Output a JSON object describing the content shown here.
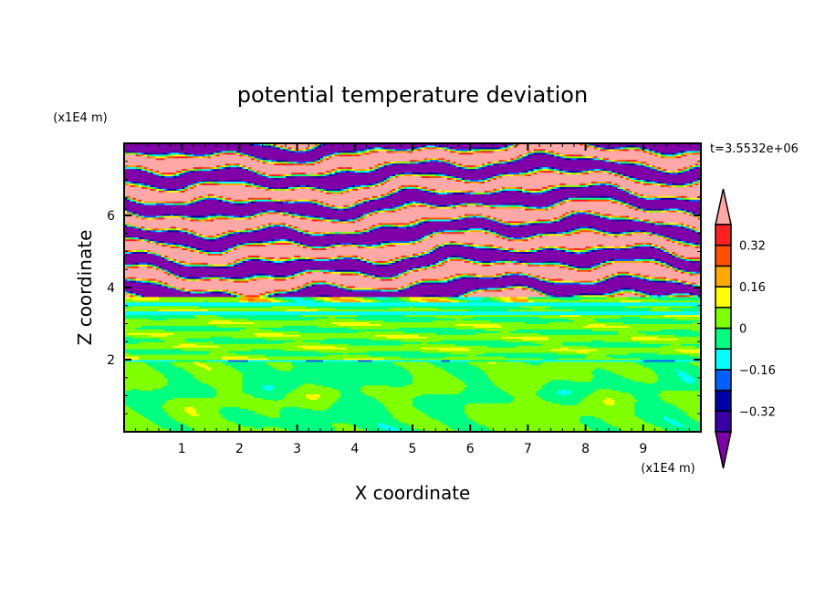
{
  "chart_data": {
    "type": "heatmap",
    "title": "potential temperature deviation",
    "xlabel": "X coordinate",
    "ylabel": "Z coordinate",
    "x_unit": "(x1E4 m)",
    "y_unit": "(x1E4 m)",
    "time_label": "t=3.5532e+06",
    "xlim": [
      0,
      10
    ],
    "ylim": [
      0,
      8
    ],
    "x_ticks": [
      1,
      2,
      3,
      4,
      5,
      6,
      7,
      8,
      9
    ],
    "y_ticks": [
      2,
      4,
      6
    ],
    "colorbar": {
      "levels": [
        -0.4,
        -0.32,
        -0.24,
        -0.16,
        -0.08,
        0,
        0.08,
        0.16,
        0.24,
        0.32,
        0.4
      ],
      "colors": [
        "#3a00a8",
        "#0000a8",
        "#0060ff",
        "#00ffff",
        "#00ff80",
        "#80ff00",
        "#ffff00",
        "#ffa800",
        "#ff5000",
        "#ff2020"
      ],
      "under_color": "#8000a8",
      "over_color": "#ffa8a8",
      "tick_labels": [
        "0.32",
        "0.16",
        "0",
        "-0.16",
        "-0.32"
      ],
      "tick_values": [
        0.32,
        0.16,
        0,
        -0.16,
        -0.32
      ]
    },
    "description_regions": [
      {
        "z_range": [
          3.8,
          8
        ],
        "pattern": "alternating strong positive (>0.4) and negative (<-0.4) layers"
      },
      {
        "z_range": [
          2,
          3.8
        ],
        "pattern": "near zero, weak negative bands"
      },
      {
        "z_range": [
          0,
          2
        ],
        "pattern": "near zero, -0.08 to 0.08 blobs"
      }
    ]
  }
}
